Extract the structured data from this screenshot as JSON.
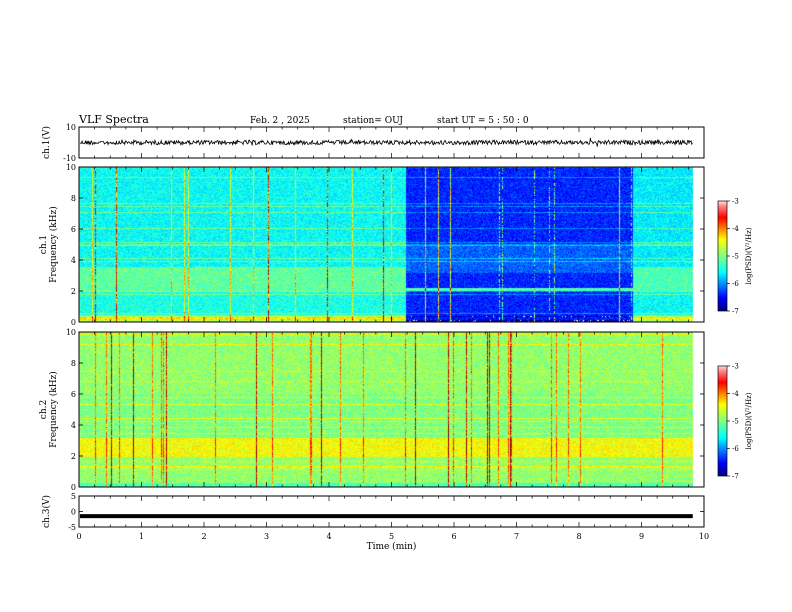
{
  "header": {
    "title": "VLF Spectra",
    "date": "Feb. 2 , 2025",
    "station": "station= OUJ",
    "start": "start UT =  5 : 50 : 0"
  },
  "chart_data": [
    {
      "type": "line",
      "panel": "ch1-waveform",
      "ylabel": "ch.1(V)",
      "ylim": [
        -10,
        10
      ],
      "yticks": [
        "10",
        "-10"
      ],
      "xlim": [
        0,
        10
      ],
      "baseline_value": 0,
      "color": "#000000"
    },
    {
      "type": "heatmap",
      "panel": "ch1-spectrogram",
      "ylabel": "ch.1\nFrequency (kHz)",
      "ylim": [
        0,
        10
      ],
      "yticks": [
        "0",
        "2",
        "4",
        "6",
        "8",
        "10"
      ],
      "xlim": [
        0,
        10
      ],
      "colorbar": {
        "label": "log(PSD)(V²/Hz)",
        "range": [
          -7,
          -3
        ],
        "ticks": [
          "-3",
          "-4",
          "-5",
          "-6",
          "-7"
        ]
      },
      "quiet_interval_min": [
        5.22,
        8.85
      ]
    },
    {
      "type": "heatmap",
      "panel": "ch2-spectrogram",
      "ylabel": "ch.2\nFrequency (kHz)",
      "ylim": [
        0,
        10
      ],
      "yticks": [
        "0",
        "2",
        "4",
        "6",
        "8",
        "10"
      ],
      "xlim": [
        0,
        10
      ],
      "colorbar": {
        "label": "log(PSD)(V²/Hz)",
        "range": [
          -7,
          -3
        ],
        "ticks": [
          "-3",
          "-4",
          "-5",
          "-6",
          "-7"
        ]
      }
    },
    {
      "type": "line",
      "panel": "ch3-waveform",
      "ylabel": "ch.3(V)",
      "ylim": [
        -5,
        5
      ],
      "yticks": [
        "5",
        "0",
        "-5"
      ],
      "xlim": [
        0,
        10
      ],
      "baseline_value": -1.5,
      "color": "#000000"
    }
  ],
  "xaxis": {
    "label": "Time (min)",
    "ticks": [
      "0",
      "1",
      "2",
      "3",
      "4",
      "5",
      "6",
      "7",
      "8",
      "9",
      "10"
    ],
    "data_end": 9.82
  },
  "colors": {
    "jet": [
      "#000080",
      "#0000ff",
      "#0080ff",
      "#00ffff",
      "#80ff80",
      "#ffff00",
      "#ff8000",
      "#ff0000",
      "#800000"
    ]
  }
}
